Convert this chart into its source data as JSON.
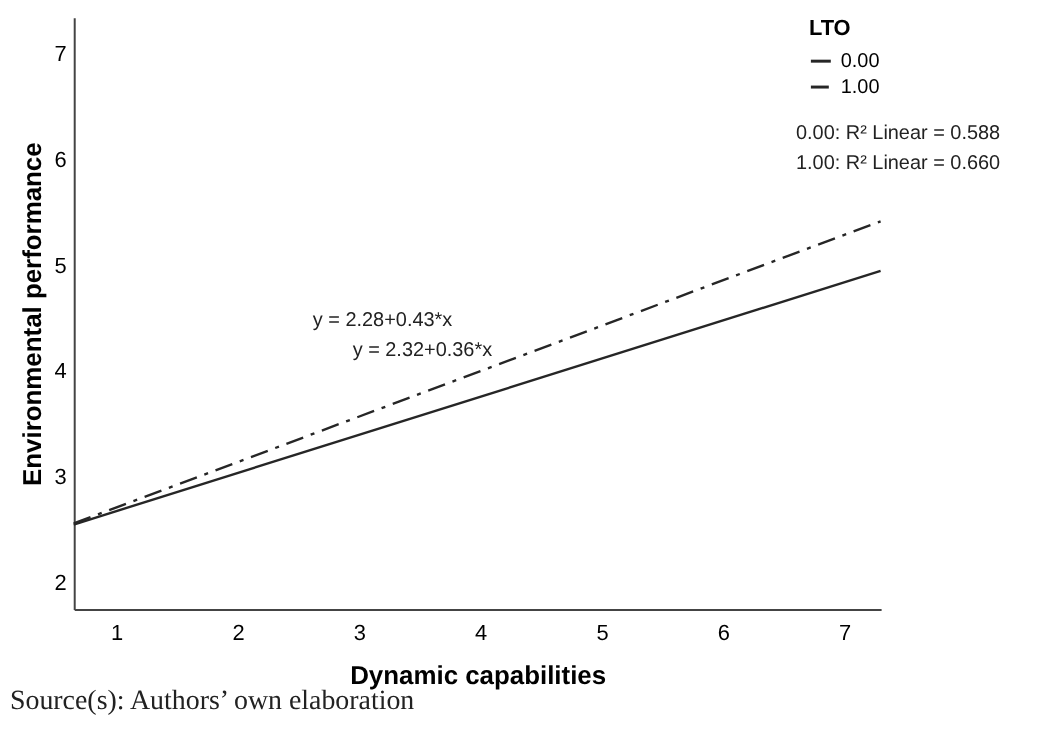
{
  "chart_data": {
    "type": "line",
    "xlabel": "Dynamic capabilities",
    "ylabel": "Environmental performance",
    "legend_title": "LTO",
    "legend": "top right",
    "grid": false,
    "marker": "none",
    "xlim": [
      0.65,
      7.3
    ],
    "ylim": [
      1.75,
      7.35
    ],
    "xticks": [
      1,
      2,
      3,
      4,
      5,
      6,
      7
    ],
    "yticks": [
      2,
      3,
      4,
      5,
      6,
      7
    ],
    "series": [
      {
        "name": "0.00",
        "color": "#262626",
        "line_style": "solid",
        "values": [
          2.55,
          4.95
        ]
      },
      {
        "name": "1.00",
        "color": "#262626",
        "line_style": "dashed",
        "values": [
          2.56,
          5.42
        ]
      }
    ],
    "x": [
      0.65,
      7.3
    ],
    "annotations": [
      "0.00: R² Linear = 0.588",
      "1.00: R² Linear = 0.660",
      "y = 2.28+0.43*x",
      "y = 2.32+0.36*x",
      "Source(s): Authors’ own elaboration"
    ]
  }
}
